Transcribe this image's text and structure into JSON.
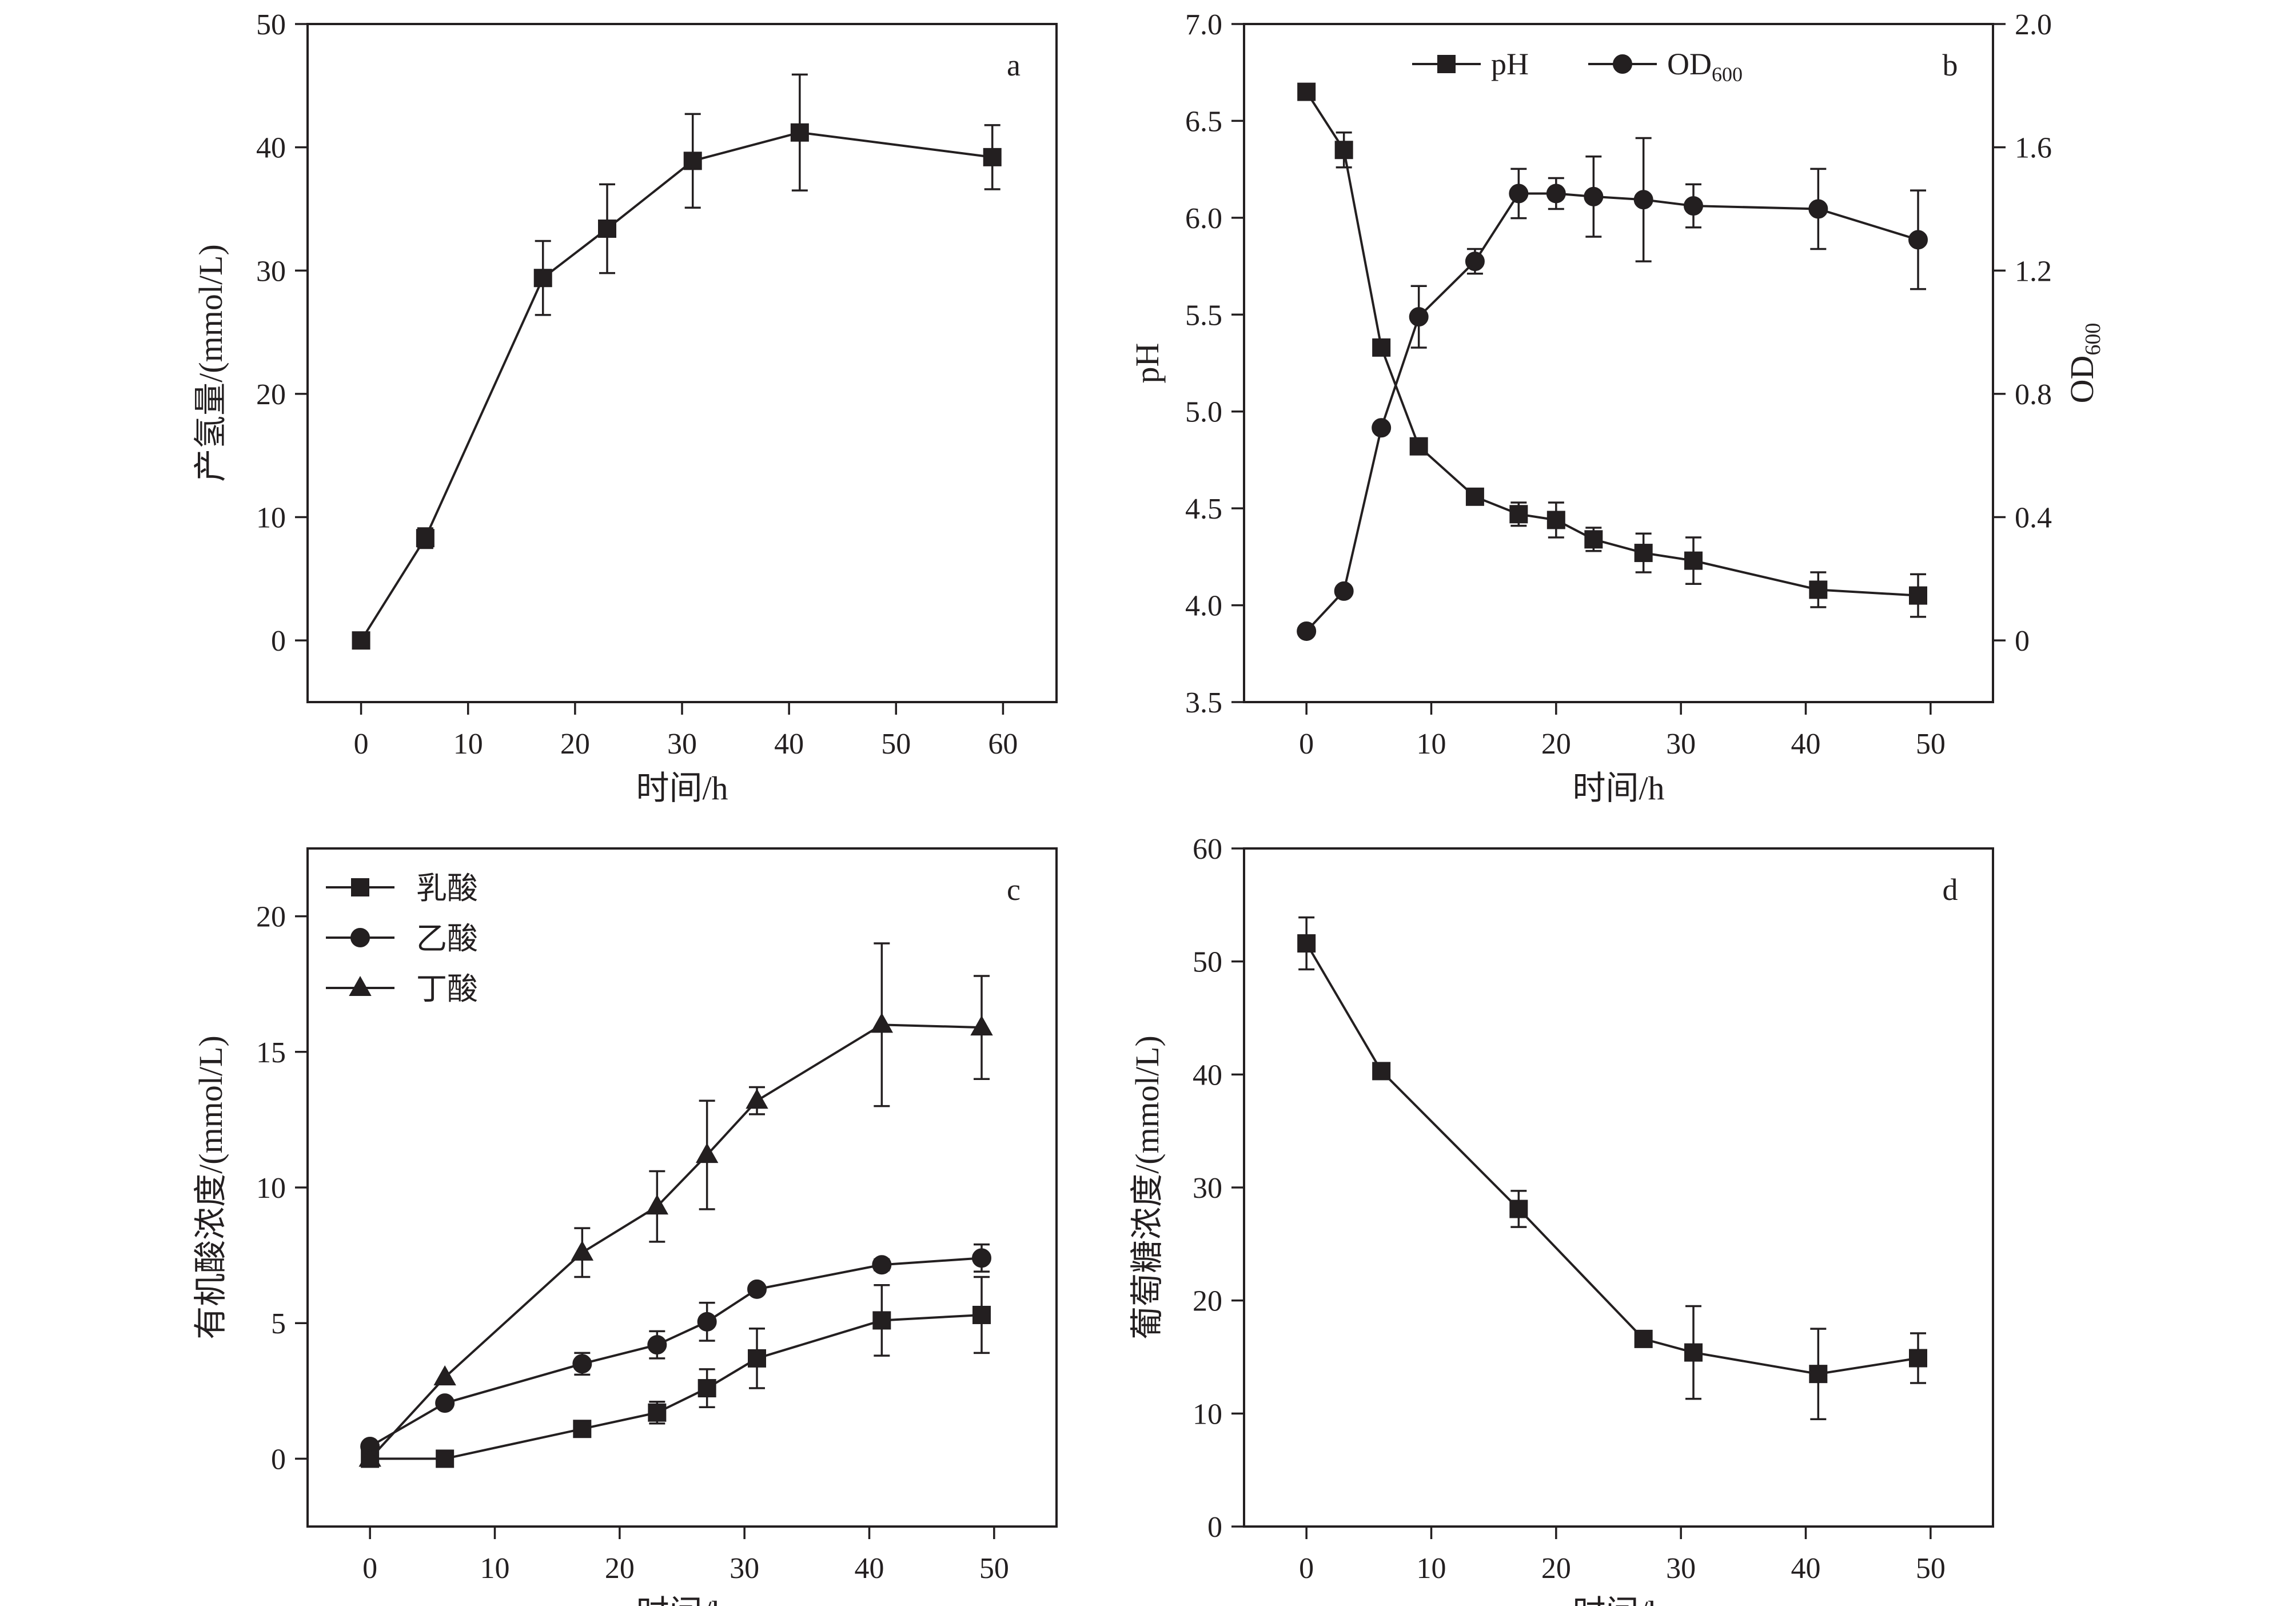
{
  "chart_data": [
    {
      "id": "a",
      "type": "line",
      "panel_label": "a",
      "xlabel": "时间/h",
      "ylabel": "产氢量/(mmol/L)",
      "xlim": [
        -5,
        65
      ],
      "ylim": [
        -5,
        50
      ],
      "xticks": [
        0,
        10,
        20,
        30,
        40,
        50,
        60
      ],
      "yticks": [
        0,
        10,
        20,
        30,
        40,
        50
      ],
      "grid": false,
      "series": [
        {
          "marker": "square",
          "x": [
            0,
            6,
            17,
            23,
            31,
            41,
            59
          ],
          "y": [
            0,
            8.3,
            29.4,
            33.4,
            38.9,
            41.2,
            39.2
          ],
          "err": [
            0,
            0.8,
            3.0,
            3.6,
            3.8,
            4.7,
            2.6
          ]
        }
      ]
    },
    {
      "id": "b",
      "type": "line",
      "panel_label": "b",
      "xlabel": "时间/h",
      "ylabel": "pH",
      "y2label": {
        "main": "OD",
        "sub": "600"
      },
      "xlim": [
        -5,
        55
      ],
      "ylim": [
        3.5,
        7.0
      ],
      "y2lim": [
        -0.2,
        2.0
      ],
      "xticks": [
        0,
        10,
        20,
        30,
        40,
        50
      ],
      "yticks": [
        "3.5",
        "4.0",
        "4.5",
        "5.0",
        "5.5",
        "6.0",
        "6.5",
        "7.0"
      ],
      "y2ticks": [
        "0",
        "0.4",
        "0.8",
        "1.2",
        "1.6",
        "2.0"
      ],
      "grid": false,
      "legend_position": "top",
      "legend": [
        {
          "text": "pH",
          "marker": "square"
        },
        {
          "text": "OD",
          "sub": "600",
          "marker": "circle"
        }
      ],
      "series": [
        {
          "axis": "left",
          "marker": "square",
          "x": [
            0,
            3,
            6,
            9,
            13.5,
            17,
            20,
            23,
            27,
            31,
            41,
            49
          ],
          "y": [
            6.65,
            6.35,
            5.33,
            4.82,
            4.56,
            4.47,
            4.44,
            4.34,
            4.27,
            4.23,
            4.08,
            4.05
          ],
          "err": [
            0,
            0.09,
            0,
            0,
            0.04,
            0.06,
            0.09,
            0.06,
            0.1,
            0.12,
            0.09,
            0.11
          ]
        },
        {
          "axis": "right",
          "marker": "circle",
          "x": [
            0,
            3,
            6,
            9,
            13.5,
            17,
            20,
            23,
            27,
            31,
            41,
            49
          ],
          "y": [
            0.03,
            0.16,
            0.69,
            1.05,
            1.23,
            1.45,
            1.45,
            1.44,
            1.43,
            1.41,
            1.4,
            1.3
          ],
          "err": [
            0,
            0,
            0,
            0.1,
            0.04,
            0.08,
            0.05,
            0.13,
            0.2,
            0.07,
            0.13,
            0.16
          ]
        }
      ]
    },
    {
      "id": "c",
      "type": "line",
      "panel_label": "c",
      "xlabel": "时间/h",
      "ylabel": "有机酸浓度/(mmol/L)",
      "xlim": [
        -5,
        55
      ],
      "ylim": [
        -2.5,
        22.5
      ],
      "xticks": [
        0,
        10,
        20,
        30,
        40,
        50
      ],
      "yticks": [
        0,
        5,
        10,
        15,
        20
      ],
      "grid": false,
      "legend_position": "top-left",
      "series": [
        {
          "name": "乳酸",
          "marker": "square",
          "x": [
            0,
            6,
            17,
            23,
            27,
            31,
            41,
            49
          ],
          "y": [
            0,
            0,
            1.1,
            1.7,
            2.6,
            3.7,
            5.1,
            5.3
          ],
          "err": [
            0,
            0,
            0,
            0.4,
            0.7,
            1.1,
            1.3,
            1.4
          ]
        },
        {
          "name": "乙酸",
          "marker": "circle",
          "x": [
            0,
            6,
            17,
            23,
            27,
            31,
            41,
            49
          ],
          "y": [
            0.45,
            2.05,
            3.5,
            4.2,
            5.05,
            6.25,
            7.15,
            7.4
          ],
          "err": [
            0,
            0,
            0.4,
            0.5,
            0.7,
            0,
            0.2,
            0.5
          ]
        },
        {
          "name": "丁酸",
          "marker": "triangle",
          "x": [
            0,
            6,
            17,
            23,
            27,
            31,
            41,
            49
          ],
          "y": [
            0,
            3.0,
            7.6,
            9.3,
            11.2,
            13.2,
            16.0,
            15.9
          ],
          "err": [
            0,
            0,
            0.9,
            1.3,
            2.0,
            0.5,
            3.0,
            1.9
          ]
        }
      ]
    },
    {
      "id": "d",
      "type": "line",
      "panel_label": "d",
      "xlabel": "时间/h",
      "ylabel": "葡萄糖浓度/(mmol/L)",
      "xlim": [
        -5,
        55
      ],
      "ylim": [
        0,
        60
      ],
      "xticks": [
        0,
        10,
        20,
        30,
        40,
        50
      ],
      "yticks": [
        0,
        10,
        20,
        30,
        40,
        50,
        60
      ],
      "grid": false,
      "series": [
        {
          "marker": "square",
          "x": [
            0,
            6,
            17,
            27,
            31,
            41,
            49
          ],
          "y": [
            51.6,
            40.3,
            28.1,
            16.6,
            15.4,
            13.5,
            14.9
          ],
          "err": [
            2.3,
            0,
            1.6,
            0,
            4.1,
            4.0,
            2.2
          ]
        }
      ]
    }
  ]
}
